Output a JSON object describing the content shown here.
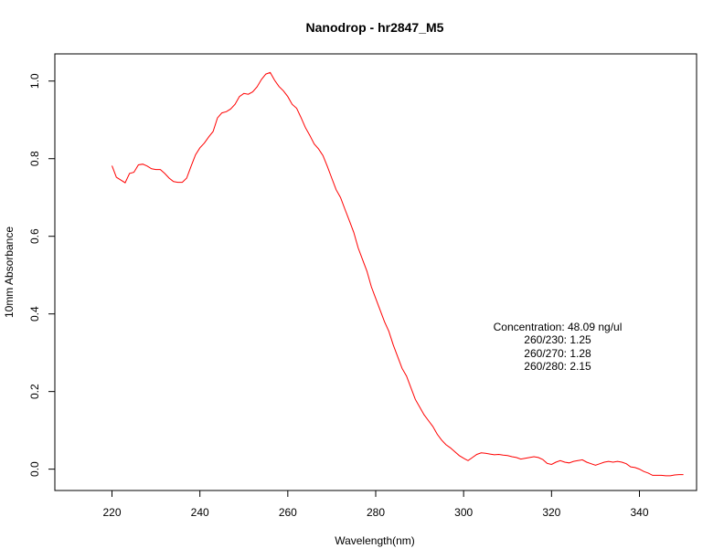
{
  "chart_data": {
    "type": "line",
    "title": "Nanodrop - hr2847_M5",
    "xlabel": "Wavelength(nm)",
    "ylabel": "10mm Absorbance",
    "xlim": [
      207,
      353
    ],
    "ylim": [
      -0.055,
      1.07
    ],
    "x_ticks": [
      220,
      240,
      260,
      280,
      300,
      320,
      340
    ],
    "y_ticks": [
      0.0,
      0.2,
      0.4,
      0.6,
      0.8,
      1.0
    ],
    "x_tick_labels": [
      "220",
      "240",
      "260",
      "280",
      "300",
      "320",
      "340"
    ],
    "y_tick_labels": [
      "0.0",
      "0.2",
      "0.4",
      "0.6",
      "0.8",
      "1.0"
    ],
    "grid": false,
    "series": [
      {
        "color": "#ff0000",
        "x": [
          220,
          221,
          222,
          223,
          224,
          225,
          226,
          227,
          228,
          229,
          230,
          231,
          232,
          233,
          234,
          235,
          236,
          237,
          238,
          239,
          240,
          241,
          242,
          243,
          244,
          245,
          246,
          247,
          248,
          249,
          250,
          251,
          252,
          253,
          254,
          255,
          256,
          257,
          258,
          259,
          260,
          261,
          262,
          263,
          264,
          265,
          266,
          267,
          268,
          269,
          270,
          271,
          272,
          273,
          274,
          275,
          276,
          277,
          278,
          279,
          280,
          281,
          282,
          283,
          284,
          285,
          286,
          287,
          288,
          289,
          290,
          291,
          292,
          293,
          294,
          295,
          296,
          297,
          298,
          299,
          300,
          301,
          302,
          303,
          304,
          305,
          306,
          307,
          308,
          309,
          310,
          311,
          312,
          313,
          314,
          315,
          316,
          317,
          318,
          319,
          320,
          321,
          322,
          323,
          324,
          325,
          326,
          327,
          328,
          329,
          330,
          331,
          332,
          333,
          334,
          335,
          336,
          337,
          338,
          339,
          340,
          341,
          342,
          343,
          344,
          345,
          346,
          347,
          348,
          349,
          350
        ],
        "y": [
          0.782,
          0.752,
          0.745,
          0.738,
          0.762,
          0.765,
          0.784,
          0.786,
          0.781,
          0.774,
          0.772,
          0.772,
          0.762,
          0.75,
          0.741,
          0.739,
          0.739,
          0.75,
          0.781,
          0.81,
          0.828,
          0.84,
          0.856,
          0.87,
          0.905,
          0.918,
          0.921,
          0.928,
          0.94,
          0.96,
          0.968,
          0.966,
          0.972,
          0.985,
          1.004,
          1.018,
          1.022,
          1.002,
          0.986,
          0.975,
          0.96,
          0.94,
          0.93,
          0.906,
          0.88,
          0.86,
          0.838,
          0.825,
          0.808,
          0.78,
          0.75,
          0.72,
          0.7,
          0.67,
          0.64,
          0.61,
          0.57,
          0.54,
          0.51,
          0.47,
          0.44,
          0.41,
          0.38,
          0.355,
          0.32,
          0.29,
          0.26,
          0.24,
          0.21,
          0.18,
          0.16,
          0.14,
          0.125,
          0.11,
          0.09,
          0.075,
          0.063,
          0.055,
          0.045,
          0.035,
          0.028,
          0.022,
          0.03,
          0.038,
          0.042,
          0.041,
          0.039,
          0.037,
          0.038,
          0.036,
          0.035,
          0.032,
          0.03,
          0.026,
          0.028,
          0.03,
          0.032,
          0.03,
          0.025,
          0.015,
          0.012,
          0.018,
          0.022,
          0.018,
          0.016,
          0.02,
          0.022,
          0.024,
          0.018,
          0.014,
          0.01,
          0.014,
          0.018,
          0.02,
          0.018,
          0.02,
          0.018,
          0.014,
          0.006,
          0.004,
          0.0,
          -0.006,
          -0.01,
          -0.016,
          -0.016,
          -0.016,
          -0.017,
          -0.017,
          -0.015,
          -0.014,
          -0.014
        ]
      }
    ],
    "annotation": {
      "lines": [
        "Concentration: 48.09 ng/ul",
        "260/230: 1.25",
        "260/270: 1.28",
        "260/280: 2.15"
      ]
    }
  }
}
